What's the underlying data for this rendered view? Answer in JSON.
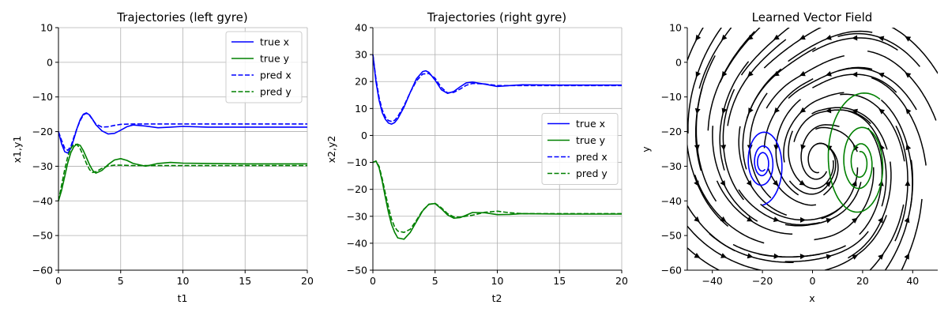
{
  "chart_data": [
    {
      "type": "line",
      "title": "Trajectories (left gyre)",
      "xlabel": "t1",
      "ylabel": "x1,y1",
      "xlim": [
        0,
        20
      ],
      "ylim": [
        -60,
        10
      ],
      "xticks": [
        "0",
        "5",
        "10",
        "15",
        "20"
      ],
      "yticks": [
        "10",
        "0",
        "−10",
        "−20",
        "−30",
        "−40",
        "−50",
        "−60"
      ],
      "grid": true,
      "legend_position": "top-right",
      "series": [
        {
          "name": "true x",
          "color": "#0000ff",
          "style": "solid",
          "x": [
            0,
            0.25,
            0.5,
            0.75,
            1.0,
            1.25,
            1.5,
            1.75,
            2.0,
            2.25,
            2.5,
            2.75,
            3.0,
            3.5,
            4.0,
            4.5,
            5.0,
            5.5,
            6.0,
            7.0,
            8.0,
            9.0,
            10.0,
            12.0,
            15.0,
            20.0
          ],
          "y": [
            -20,
            -23.5,
            -25.8,
            -26.2,
            -24.8,
            -22,
            -19,
            -16.5,
            -15.0,
            -14.6,
            -15.2,
            -16.5,
            -18,
            -19.8,
            -20.7,
            -20.5,
            -19.6,
            -18.6,
            -18.1,
            -18.4,
            -18.9,
            -18.7,
            -18.5,
            -18.7,
            -18.7,
            -18.7
          ]
        },
        {
          "name": "true y",
          "color": "#008000",
          "style": "solid",
          "x": [
            0,
            0.25,
            0.5,
            0.75,
            1.0,
            1.25,
            1.5,
            1.75,
            2.0,
            2.25,
            2.5,
            2.75,
            3.0,
            3.5,
            4.0,
            4.5,
            5.0,
            5.5,
            6.0,
            7.0,
            8.0,
            9.0,
            10.0,
            12.0,
            15.0,
            20.0
          ],
          "y": [
            -40,
            -37,
            -33,
            -29,
            -26,
            -24.3,
            -23.6,
            -24,
            -25.5,
            -27.5,
            -29.6,
            -31.2,
            -32,
            -31.2,
            -29.5,
            -28.2,
            -27.8,
            -28.3,
            -29.2,
            -30,
            -29.2,
            -28.9,
            -29.1,
            -29.2,
            -29.3,
            -29.3
          ]
        },
        {
          "name": "pred x",
          "color": "#0000ff",
          "style": "dashed",
          "x": [
            0,
            0.25,
            0.5,
            0.75,
            1.0,
            1.25,
            1.5,
            1.75,
            2.0,
            2.25,
            2.5,
            2.75,
            3.0,
            3.5,
            4.0,
            4.5,
            5.0,
            6.0,
            7.0,
            8.0,
            10.0,
            15.0,
            20.0
          ],
          "y": [
            -20,
            -22.5,
            -24.8,
            -25.4,
            -24.2,
            -21.5,
            -19,
            -16.8,
            -15.2,
            -14.7,
            -15.3,
            -16.6,
            -17.8,
            -18.7,
            -18.6,
            -18.2,
            -17.9,
            -17.8,
            -17.8,
            -17.8,
            -17.8,
            -17.8,
            -17.8
          ]
        },
        {
          "name": "pred y",
          "color": "#008000",
          "style": "dashed",
          "x": [
            0,
            0.25,
            0.5,
            0.75,
            1.0,
            1.25,
            1.5,
            1.75,
            2.0,
            2.25,
            2.5,
            2.75,
            3.0,
            3.5,
            4.0,
            4.5,
            5.0,
            6.0,
            7.0,
            8.0,
            10.0,
            15.0,
            20.0
          ],
          "y": [
            -40,
            -35.5,
            -31,
            -27.2,
            -24.8,
            -23.6,
            -23.8,
            -25,
            -27,
            -29.2,
            -31,
            -31.8,
            -31.6,
            -30.6,
            -29.9,
            -29.7,
            -29.7,
            -29.8,
            -29.8,
            -29.8,
            -29.8,
            -29.8,
            -29.8
          ]
        }
      ]
    },
    {
      "type": "line",
      "title": "Trajectories (right gyre)",
      "xlabel": "t2",
      "ylabel": "x2,y2",
      "xlim": [
        0,
        20
      ],
      "ylim": [
        -50,
        40
      ],
      "xticks": [
        "0",
        "5",
        "10",
        "15",
        "20"
      ],
      "yticks": [
        "40",
        "30",
        "20",
        "10",
        "0",
        "−10",
        "−20",
        "−30",
        "−40",
        "−50"
      ],
      "grid": true,
      "legend_position": "center-right",
      "series": [
        {
          "name": "true x",
          "color": "#0000ff",
          "style": "solid",
          "x": [
            0,
            0.25,
            0.5,
            0.75,
            1.0,
            1.25,
            1.5,
            1.75,
            2.0,
            2.5,
            3.0,
            3.5,
            4.0,
            4.25,
            4.5,
            5.0,
            5.5,
            6.0,
            6.5,
            7.0,
            7.5,
            8.0,
            9.0,
            10.0,
            11.0,
            12.0,
            15.0,
            20.0
          ],
          "y": [
            30,
            20,
            13,
            8.5,
            6,
            4.6,
            4.2,
            4.8,
            6.2,
            10.5,
            16,
            21,
            23.7,
            24,
            23.4,
            20.5,
            17,
            15.6,
            16.3,
            18,
            19.5,
            19.8,
            19,
            18.2,
            18.5,
            18.8,
            18.7,
            18.7
          ]
        },
        {
          "name": "true y",
          "color": "#008000",
          "style": "solid",
          "x": [
            0,
            0.25,
            0.5,
            0.75,
            1.0,
            1.25,
            1.5,
            1.75,
            2.0,
            2.5,
            3.0,
            3.5,
            4.0,
            4.5,
            5.0,
            5.5,
            6.0,
            6.5,
            7.0,
            7.5,
            8.0,
            9.0,
            10.0,
            11.0,
            12.0,
            15.0,
            20.0
          ],
          "y": [
            -10,
            -9.5,
            -12,
            -17,
            -23,
            -28.5,
            -33,
            -36,
            -38,
            -38.5,
            -36,
            -32,
            -28,
            -25.5,
            -25.3,
            -27.2,
            -29.5,
            -30.7,
            -30.5,
            -29.6,
            -28.6,
            -28.7,
            -29.4,
            -29.3,
            -29,
            -29.2,
            -29.2
          ]
        },
        {
          "name": "pred x",
          "color": "#0000ff",
          "style": "dashed",
          "x": [
            0,
            0.25,
            0.5,
            0.75,
            1.0,
            1.25,
            1.5,
            1.75,
            2.0,
            2.5,
            3.0,
            3.5,
            4.0,
            4.5,
            5.0,
            5.5,
            6.0,
            6.5,
            7.0,
            7.5,
            8.0,
            9.0,
            10.0,
            12.0,
            15.0,
            20.0
          ],
          "y": [
            30,
            21,
            14,
            9.5,
            6.8,
            5.5,
            5.2,
            5.6,
            7,
            11,
            16,
            20.2,
            22.8,
            23,
            21.2,
            17.8,
            15.8,
            16,
            17.2,
            18.6,
            19.3,
            19.1,
            18.5,
            18.5,
            18.5,
            18.5
          ]
        },
        {
          "name": "pred y",
          "color": "#008000",
          "style": "dashed",
          "x": [
            0,
            0.25,
            0.5,
            0.75,
            1.0,
            1.25,
            1.5,
            1.75,
            2.0,
            2.5,
            3.0,
            3.5,
            4.0,
            4.5,
            5.0,
            5.5,
            6.0,
            6.5,
            7.0,
            8.0,
            9.0,
            10.0,
            11.0,
            12.0,
            15.0,
            20.0
          ],
          "y": [
            -10,
            -9.5,
            -11.5,
            -16,
            -21.5,
            -26.5,
            -31,
            -34,
            -35.5,
            -36,
            -34.8,
            -31.5,
            -27.8,
            -25.6,
            -25.2,
            -26.8,
            -29,
            -30.2,
            -30.3,
            -29.6,
            -28.5,
            -28.1,
            -28.7,
            -29,
            -29,
            -29
          ]
        }
      ]
    },
    {
      "type": "streamplot",
      "title": "Learned Vector Field",
      "xlabel": "x",
      "ylabel": "y",
      "xlim": [
        -50,
        50
      ],
      "ylim": [
        -60,
        10
      ],
      "xticks": [
        "−40",
        "−20",
        "0",
        "20",
        "40"
      ],
      "yticks": [
        "10",
        "0",
        "−10",
        "−20",
        "−30",
        "−40",
        "−50",
        "−60"
      ],
      "grid": false,
      "field_centers": [
        [
          -20,
          -28
        ],
        [
          20,
          -28
        ]
      ],
      "streamline_color": "#000000",
      "trajectories": [
        {
          "name": "left gyre",
          "color": "#0000ff",
          "center": [
            -20,
            -29
          ],
          "start": [
            -20,
            -40
          ],
          "max_radius": 11
        },
        {
          "name": "right gyre",
          "color": "#008000",
          "center": [
            19,
            -29
          ],
          "start": [
            30,
            -10
          ],
          "max_radius": 20
        }
      ]
    }
  ]
}
